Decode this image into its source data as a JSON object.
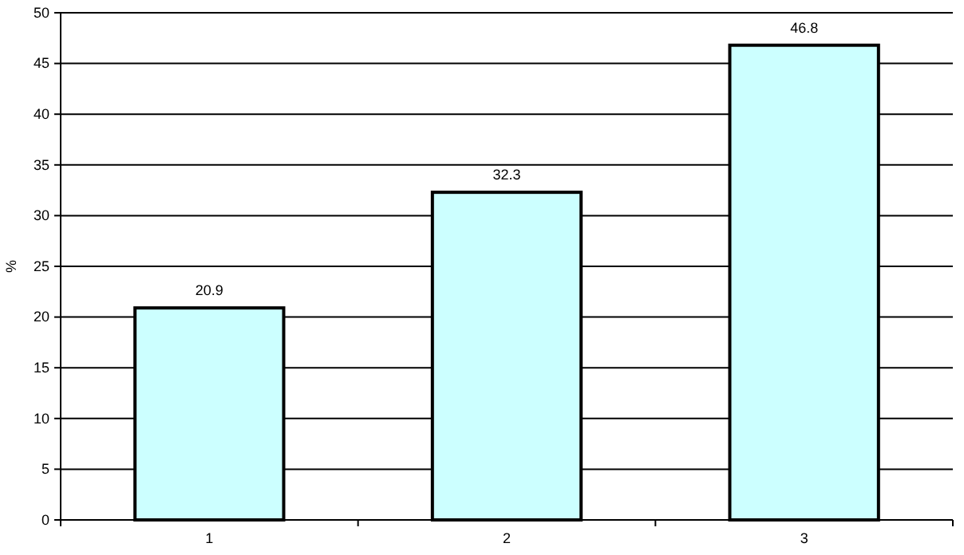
{
  "chart_data": {
    "type": "bar",
    "ylabel": "%",
    "categories": [
      "1",
      "2",
      "3"
    ],
    "values": [
      20.9,
      32.3,
      46.8
    ],
    "color": "#ccffff",
    "ylim": [
      0,
      50
    ],
    "yticks": [
      0,
      5,
      10,
      15,
      20,
      25,
      30,
      35,
      40,
      45,
      50
    ],
    "grid": "y",
    "data_labels": true
  }
}
